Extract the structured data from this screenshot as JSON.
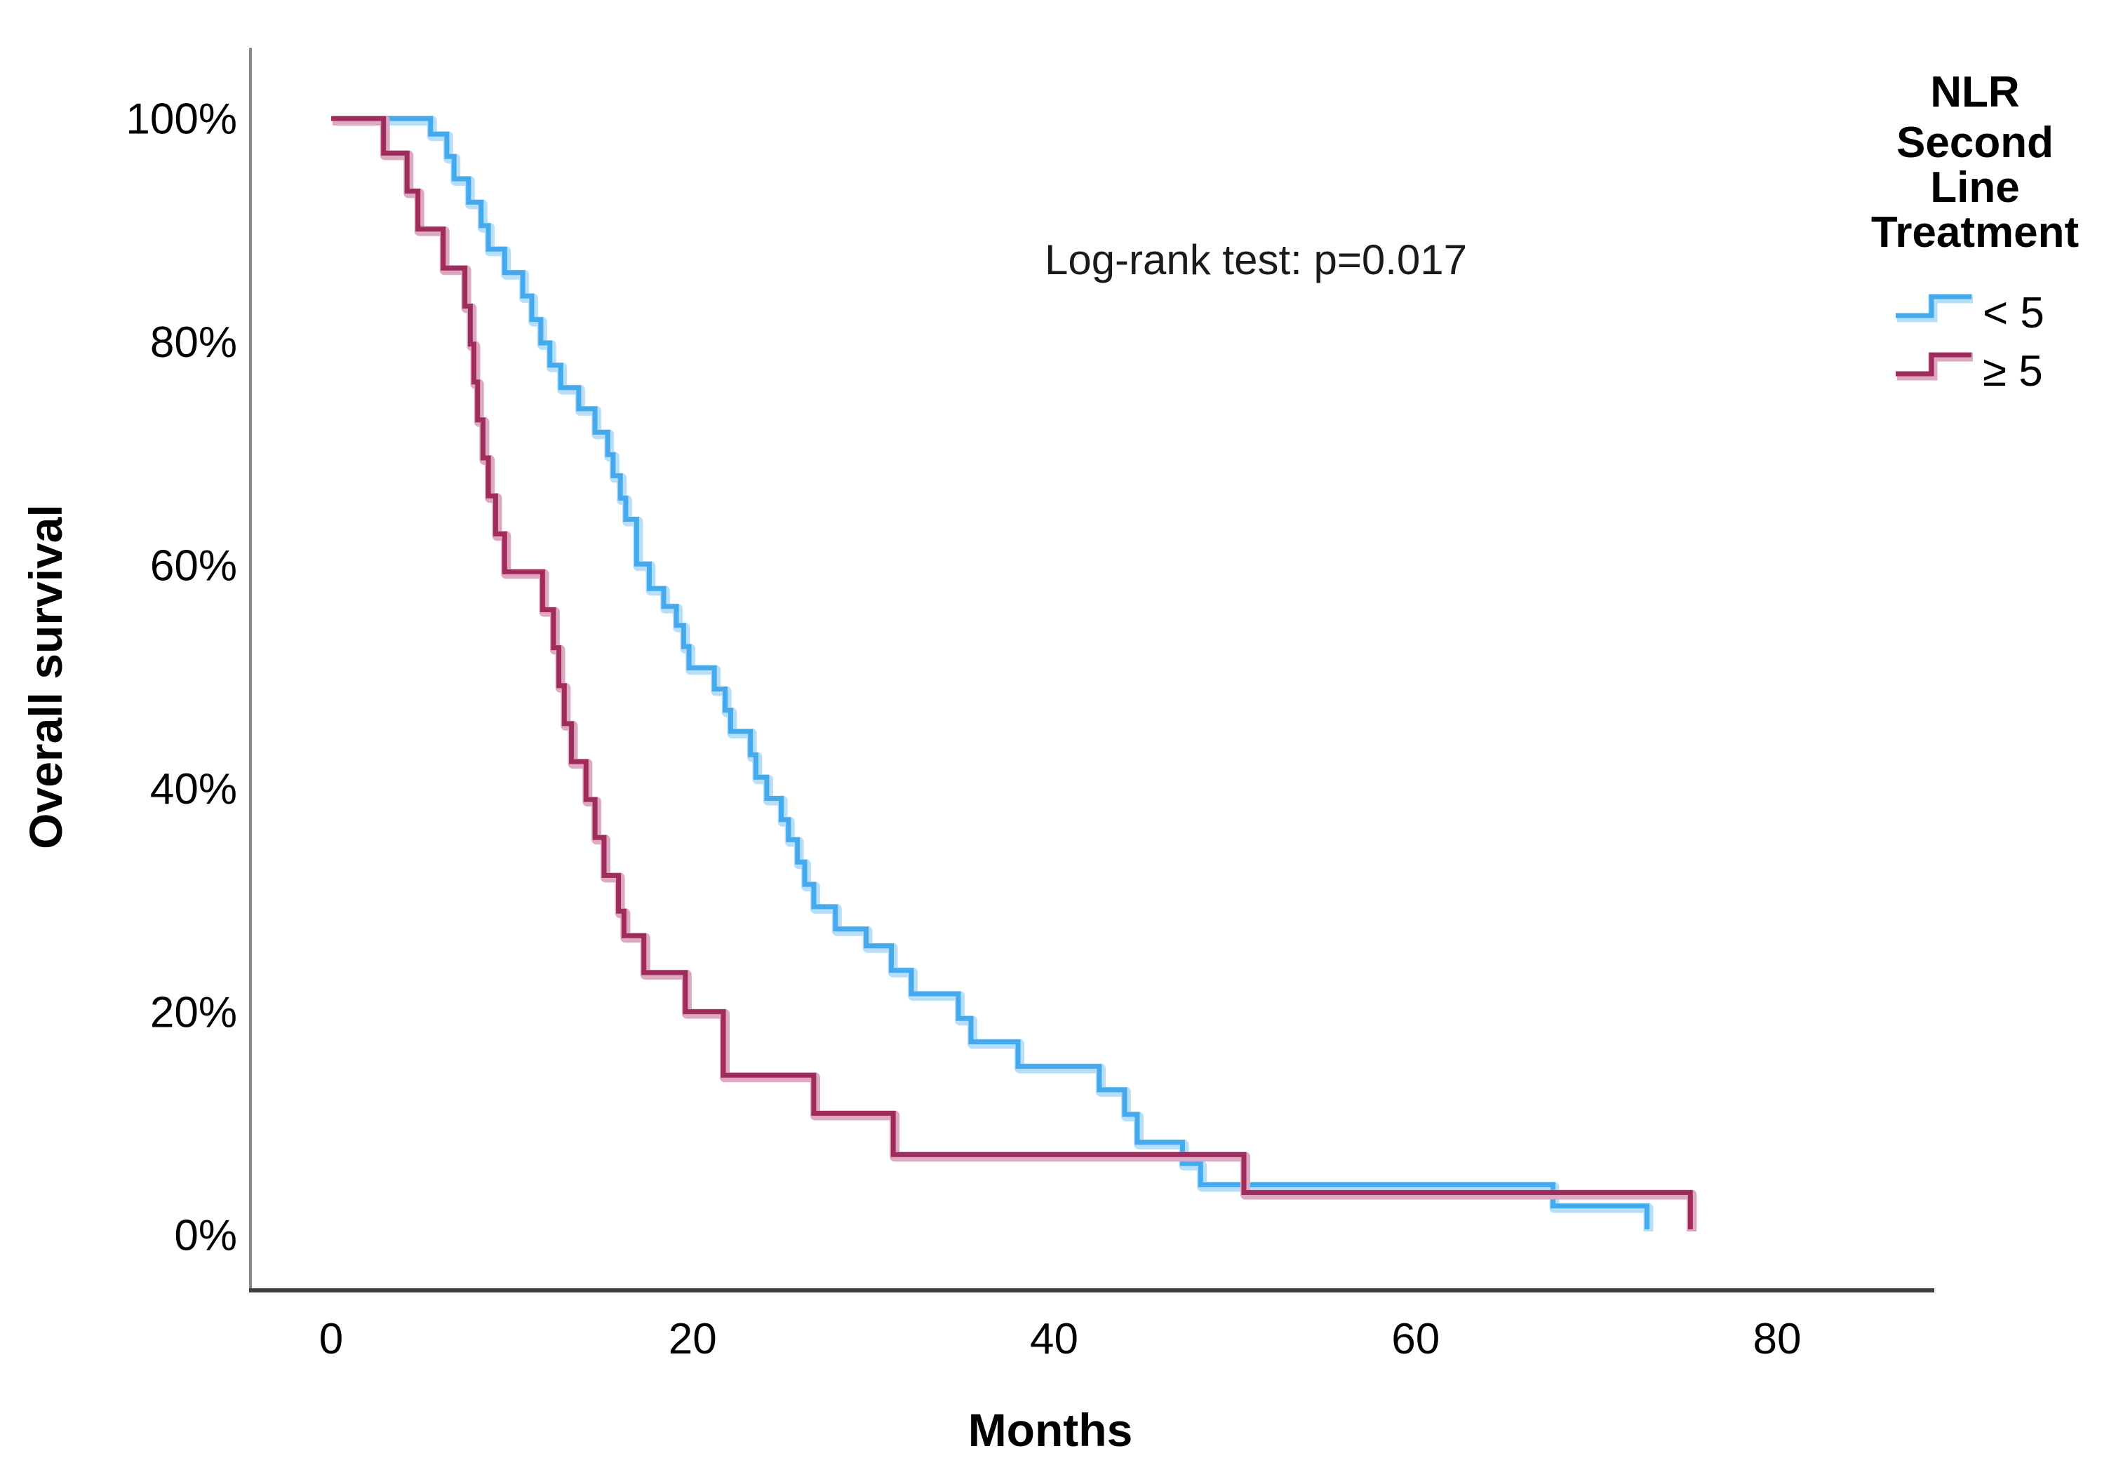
{
  "chart_data": {
    "type": "line",
    "subtype": "kaplan-meier-step",
    "title": "",
    "xlabel": "Months",
    "ylabel": "Overall survival",
    "x_ticks": [
      0,
      20,
      40,
      60,
      80
    ],
    "y_ticks": [
      100,
      80,
      60,
      40,
      20,
      0
    ],
    "y_tick_suffix": "%",
    "xlim": [
      0,
      80
    ],
    "ylim": [
      0,
      100
    ],
    "grid": false,
    "legend_position": "right",
    "annotation": "Log-rank test: p=0.017",
    "series": [
      {
        "name": "< 5",
        "color": "#45a9ee",
        "halo_color": "#b8dff9",
        "points": [
          [
            0,
            100
          ],
          [
            5.5,
            98.6
          ],
          [
            6.4,
            96.6
          ],
          [
            6.8,
            94.6
          ],
          [
            7.6,
            92.5
          ],
          [
            8.3,
            90.4
          ],
          [
            8.7,
            88.3
          ],
          [
            9.6,
            86.2
          ],
          [
            10.6,
            84.1
          ],
          [
            11.1,
            82.0
          ],
          [
            11.6,
            79.9
          ],
          [
            12.1,
            77.9
          ],
          [
            12.7,
            75.9
          ],
          [
            13.7,
            74.0
          ],
          [
            14.6,
            71.9
          ],
          [
            15.3,
            69.9
          ],
          [
            15.6,
            68.0
          ],
          [
            16.0,
            66.0
          ],
          [
            16.3,
            64.1
          ],
          [
            16.9,
            60.1
          ],
          [
            17.6,
            57.9
          ],
          [
            18.4,
            56.3
          ],
          [
            19.1,
            54.6
          ],
          [
            19.5,
            52.7
          ],
          [
            19.8,
            50.8
          ],
          [
            21.2,
            48.9
          ],
          [
            21.8,
            47.0
          ],
          [
            22.1,
            45.1
          ],
          [
            23.2,
            43.0
          ],
          [
            23.5,
            41.0
          ],
          [
            24.1,
            39.1
          ],
          [
            24.9,
            37.2
          ],
          [
            25.3,
            35.4
          ],
          [
            25.8,
            33.4
          ],
          [
            26.2,
            31.4
          ],
          [
            26.7,
            29.4
          ],
          [
            27.9,
            27.4
          ],
          [
            29.6,
            25.9
          ],
          [
            31.0,
            23.7
          ],
          [
            32.1,
            21.6
          ],
          [
            34.7,
            19.4
          ],
          [
            35.4,
            17.3
          ],
          [
            38.0,
            15.1
          ],
          [
            42.5,
            13.0
          ],
          [
            43.9,
            10.8
          ],
          [
            44.6,
            8.3
          ],
          [
            47.1,
            6.4
          ],
          [
            48.1,
            4.5
          ],
          [
            67.6,
            2.6
          ],
          [
            72.8,
            0.5
          ]
        ]
      },
      {
        "name": "≥ 5",
        "color": "#a02c5c",
        "halo_color": "#dca9c0",
        "points": [
          [
            0,
            100
          ],
          [
            2.9,
            96.9
          ],
          [
            4.2,
            93.5
          ],
          [
            4.8,
            90.1
          ],
          [
            6.2,
            86.6
          ],
          [
            7.4,
            83.2
          ],
          [
            7.7,
            79.8
          ],
          [
            7.9,
            76.4
          ],
          [
            8.1,
            73.0
          ],
          [
            8.4,
            69.6
          ],
          [
            8.7,
            66.2
          ],
          [
            9.1,
            62.8
          ],
          [
            9.6,
            59.4
          ],
          [
            11.7,
            56.0
          ],
          [
            12.3,
            52.6
          ],
          [
            12.6,
            49.2
          ],
          [
            12.9,
            45.8
          ],
          [
            13.3,
            42.4
          ],
          [
            14.1,
            39.0
          ],
          [
            14.6,
            35.6
          ],
          [
            15.1,
            32.2
          ],
          [
            15.9,
            29.0
          ],
          [
            16.2,
            26.8
          ],
          [
            17.3,
            23.5
          ],
          [
            19.6,
            20.0
          ],
          [
            21.7,
            14.3
          ],
          [
            26.7,
            10.9
          ],
          [
            31.1,
            7.2
          ],
          [
            50.5,
            3.8
          ],
          [
            75.2,
            0.5
          ]
        ]
      }
    ]
  },
  "legend": {
    "title_lines": [
      "NLR",
      "Second",
      "Line",
      "Treatment"
    ],
    "items": [
      {
        "label": "< 5",
        "swatch": "blue-step-line-icon"
      },
      {
        "label": "≥ 5",
        "swatch": "red-step-line-icon"
      }
    ]
  },
  "axes": {
    "y_axis_color": "#898989",
    "x_axis_color": "#404040"
  }
}
